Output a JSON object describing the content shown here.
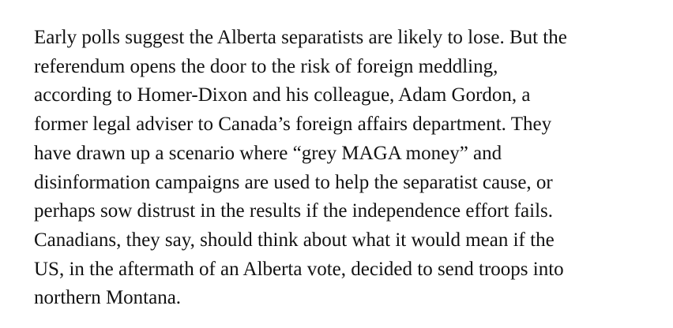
{
  "article": {
    "paragraph_lines": [
      "Early polls suggest the Alberta separatists are likely to lose. But the",
      "referendum opens the door to the risk of foreign meddling,",
      "according to Homer-Dixon and his colleague, Adam Gordon, a",
      "former legal adviser to Canada’s foreign affairs department. They",
      "have drawn up a scenario where “grey MAGA money” and",
      "disinformation campaigns are used to help the separatist cause, or",
      "perhaps sow distrust in the results if the independence effort fails.",
      "Canadians, they say, should think about what it would mean if the",
      "US, in the aftermath of an Alberta vote, decided to send troops into",
      "northern Montana."
    ]
  }
}
